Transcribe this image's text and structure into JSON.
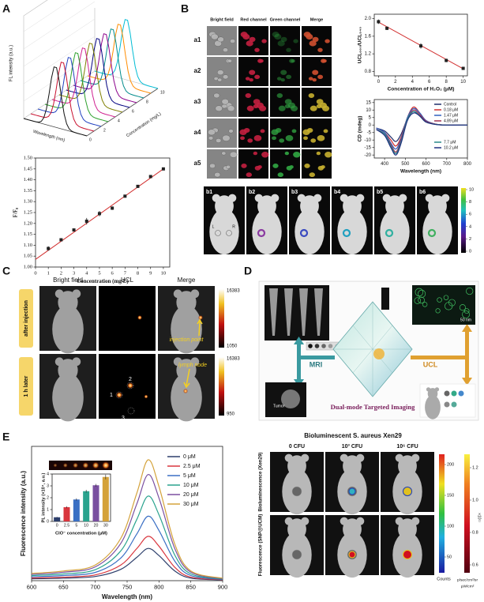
{
  "panel_labels": [
    "A",
    "B",
    "C",
    "D",
    "E"
  ],
  "panel_a": {
    "z_label": "FL intensity (a.u.)",
    "x_label": "Wavelength (nm)",
    "depth_label": "Concentration (mg/L)",
    "depth_ticks": [
      0,
      2,
      4,
      6,
      8,
      10
    ]
  },
  "panel_b": {
    "columns": [
      "Bright field",
      "Red channel",
      "Green channel",
      "Merge"
    ],
    "rows": [
      "a1",
      "a2",
      "a3",
      "a4",
      "a5"
    ],
    "mice": [
      "b1",
      "b2",
      "b3",
      "b4",
      "b5",
      "b6"
    ],
    "sides": [
      "L",
      "R"
    ],
    "colorbar_ticks": [
      10,
      8,
      6,
      4,
      2,
      0
    ]
  },
  "panel_c": {
    "columns": [
      "Bright field",
      "UCL",
      "Merge"
    ],
    "rows": [
      "after injection",
      "1 h later"
    ],
    "colorbars": [
      [
        16383,
        1050
      ],
      [
        16383,
        950
      ]
    ],
    "annotations": [
      "injection point",
      "lymph node"
    ],
    "nodes": [
      "1",
      "2",
      "3"
    ]
  },
  "panel_d": {
    "modes": [
      "MRI",
      "UCL"
    ],
    "caption": "Dual-mode Targeted Imaging",
    "tumor": "Tumor",
    "scale_bar": "50 nm"
  },
  "panel_e": {
    "title": "Bioluminescent S. aureus Xen29",
    "columns": [
      "0 CFU",
      "10³ CFU",
      "10⁶ CFU"
    ],
    "rows": [
      "Bioluminescence (Xen29)",
      "Fluorescence (SNP@UCM)"
    ],
    "counts_ticks": [
      200,
      150,
      100,
      50
    ],
    "counts_label": "Counts",
    "radiance_ticks": [
      1.2,
      {
        "value": 1,
        "label": "1.0"
      },
      0.8,
      0.6
    ],
    "radiance_scale": "×10¹¹",
    "radiance_unit": "p/sec/cm²/sr",
    "power_unit": "μW/cm²"
  },
  "chart_data": [
    {
      "type": "scatter",
      "xlabel": "Concentration (mg/L)",
      "ylabel": "F/F₀",
      "x": [
        1,
        2,
        3,
        4,
        5,
        6,
        7,
        8,
        9,
        10
      ],
      "values": [
        1.085,
        1.125,
        1.17,
        1.21,
        1.245,
        1.27,
        1.325,
        1.37,
        1.415,
        1.45
      ],
      "errors": [
        0.01,
        0.005,
        0.005,
        0.015,
        0.012,
        0.008,
        0.006,
        0.007,
        0.005,
        0.004
      ],
      "color": "#222222",
      "fit": {
        "x": [
          0,
          10
        ],
        "values": [
          1.035,
          1.45
        ],
        "color": "#d23030"
      },
      "xlim": [
        0,
        10.5
      ],
      "ylim": [
        1,
        1.5
      ],
      "xticks": [
        0,
        1,
        2,
        3,
        4,
        5,
        6,
        7,
        8,
        9,
        10
      ],
      "yticks": [
        {
          "value": 1,
          "label": "1.00"
        },
        {
          "value": 1.05,
          "label": "1.05"
        },
        {
          "value": 1.1,
          "label": "1.10"
        },
        {
          "value": 1.15,
          "label": "1.15"
        },
        {
          "value": 1.2,
          "label": "1.20"
        },
        {
          "value": 1.25,
          "label": "1.25"
        },
        {
          "value": 1.3,
          "label": "1.30"
        },
        {
          "value": 1.35,
          "label": "1.35"
        },
        {
          "value": 1.4,
          "label": "1.40"
        },
        {
          "value": 1.45,
          "label": "1.45"
        },
        {
          "value": 1.5,
          "label": "1.50"
        }
      ]
    },
    {
      "type": "scatter",
      "xlabel": "Concentration of H₂O₂ (μM)",
      "ylabel": "UCL₆₆₀/UCL₅₄₀",
      "x": [
        0,
        1,
        5,
        8,
        10
      ],
      "values": [
        1.93,
        1.78,
        1.38,
        1.05,
        0.87
      ],
      "errors": [
        0.05,
        0.04,
        0.06,
        0.04,
        0.03
      ],
      "color": "#222222",
      "fit": {
        "x": [
          0,
          10
        ],
        "values": [
          1.92,
          0.86
        ],
        "color": "#d23030"
      },
      "xlim": [
        -0.5,
        10.5
      ],
      "ylim": [
        0.7,
        2.1
      ],
      "xticks": [
        0,
        2,
        4,
        6,
        8,
        10
      ],
      "yticks": [
        0.8,
        1.2,
        1.6,
        {
          "value": 2,
          "label": "2.0"
        }
      ]
    },
    {
      "type": "line",
      "xlabel": "Wavelength (nm)",
      "ylabel": "CD (mdeg)",
      "legend": "upper right",
      "x": [
        360,
        400,
        430,
        455,
        480,
        510,
        540,
        570,
        600,
        650,
        700,
        800
      ],
      "series": [
        {
          "name": "Control",
          "color": "#1f2d6b",
          "values": [
            -2,
            -4,
            -8,
            -11,
            -6,
            4,
            9,
            6,
            2,
            0.5,
            0,
            0
          ]
        },
        {
          "name": "0.18 μM",
          "color": "#d03030",
          "values": [
            -2,
            -5,
            -10,
            -14,
            -8,
            5,
            12,
            8,
            3,
            0.5,
            0,
            0
          ]
        },
        {
          "name": "1.47 μM",
          "color": "#3060c0",
          "values": [
            -2,
            -5,
            -12,
            -16,
            -9,
            5,
            11,
            8,
            3,
            0.5,
            0,
            0
          ]
        },
        {
          "name": "4.89 μM",
          "color": "#a03050",
          "values": [
            -3,
            -6,
            -13,
            -18,
            -10,
            4,
            10,
            7,
            2.5,
            0.5,
            0,
            0
          ]
        },
        {
          "name": "7.7 μM",
          "color": "#2a8a8a",
          "values": [
            -3,
            -6,
            -14,
            -19,
            -11,
            4,
            9,
            6,
            2,
            0.4,
            0,
            0
          ]
        },
        {
          "name": "10.2 μM",
          "color": "#203080",
          "values": [
            -3,
            -7,
            -15,
            -20,
            -12,
            3,
            8,
            6,
            2,
            0.3,
            0,
            0
          ]
        }
      ],
      "xlim": [
        350,
        800
      ],
      "ylim": [
        -22,
        17
      ],
      "xticks": [
        400,
        500,
        600,
        700,
        800
      ],
      "yticks": [
        -20,
        -15,
        -10,
        -5,
        0,
        5,
        10,
        15
      ]
    },
    {
      "type": "line",
      "xlabel": "Wavelength (nm)",
      "ylabel": "Fluorescence intensity (a.u.)",
      "legend": "upper right",
      "x": [
        600,
        650,
        700,
        740,
        765,
        783,
        800,
        825,
        850,
        900
      ],
      "series": [
        {
          "name": "0 μM",
          "color": "#2c3e6b",
          "values": [
            1.4,
            1.9,
            3.1,
            8.4,
            17.3,
            24,
            18.7,
            7.2,
            1.9,
            0.5
          ]
        },
        {
          "name": "2.5 μM",
          "color": "#d9363e",
          "values": [
            2.0,
            2.6,
            4.3,
            11.6,
            23.8,
            33,
            25.7,
            9.9,
            2.6,
            0.7
          ]
        },
        {
          "name": "5 μM",
          "color": "#3a6fc4",
          "values": [
            2.9,
            3.8,
            6.2,
            16.8,
            34.6,
            48,
            37.4,
            14.4,
            3.8,
            1.0
          ]
        },
        {
          "name": "10 μM",
          "color": "#2aa38e",
          "values": [
            3.8,
            5.0,
            8.2,
            22.1,
            45.4,
            63,
            49.1,
            18.9,
            5.0,
            1.3
          ]
        },
        {
          "name": "20 μM",
          "color": "#7a4fa0",
          "values": [
            4.7,
            6.3,
            10.3,
            27.7,
            56.9,
            79,
            61.6,
            23.7,
            6.3,
            1.6
          ]
        },
        {
          "name": "30 μM",
          "color": "#d4a23a",
          "values": [
            5.4,
            7.2,
            11.7,
            31.5,
            64.8,
            90,
            70.2,
            27,
            7.2,
            1.8
          ]
        }
      ],
      "xlim": [
        600,
        900
      ],
      "ylim": [
        0,
        100
      ],
      "xticks": [
        600,
        650,
        700,
        750,
        800,
        850,
        900
      ]
    },
    {
      "type": "bar",
      "xlabel": "ClO⁻ concentration (μM)",
      "ylabel": "PL intensity (×10⁴, a.u.)",
      "categories": [
        "0",
        "2.5",
        "5",
        "10",
        "20",
        "30"
      ],
      "values": [
        0.35,
        1.2,
        1.85,
        2.55,
        3.05,
        3.75
      ],
      "errors": [
        0.03,
        0.08,
        0.1,
        0.12,
        0.12,
        0.2
      ],
      "colors": [
        "#2c3e6b",
        "#d9363e",
        "#3a6fc4",
        "#2aa38e",
        "#7a4fa0",
        "#d4a23a"
      ],
      "ylim": [
        0,
        4
      ],
      "yticks": [
        0,
        1,
        2,
        3,
        4
      ]
    }
  ]
}
